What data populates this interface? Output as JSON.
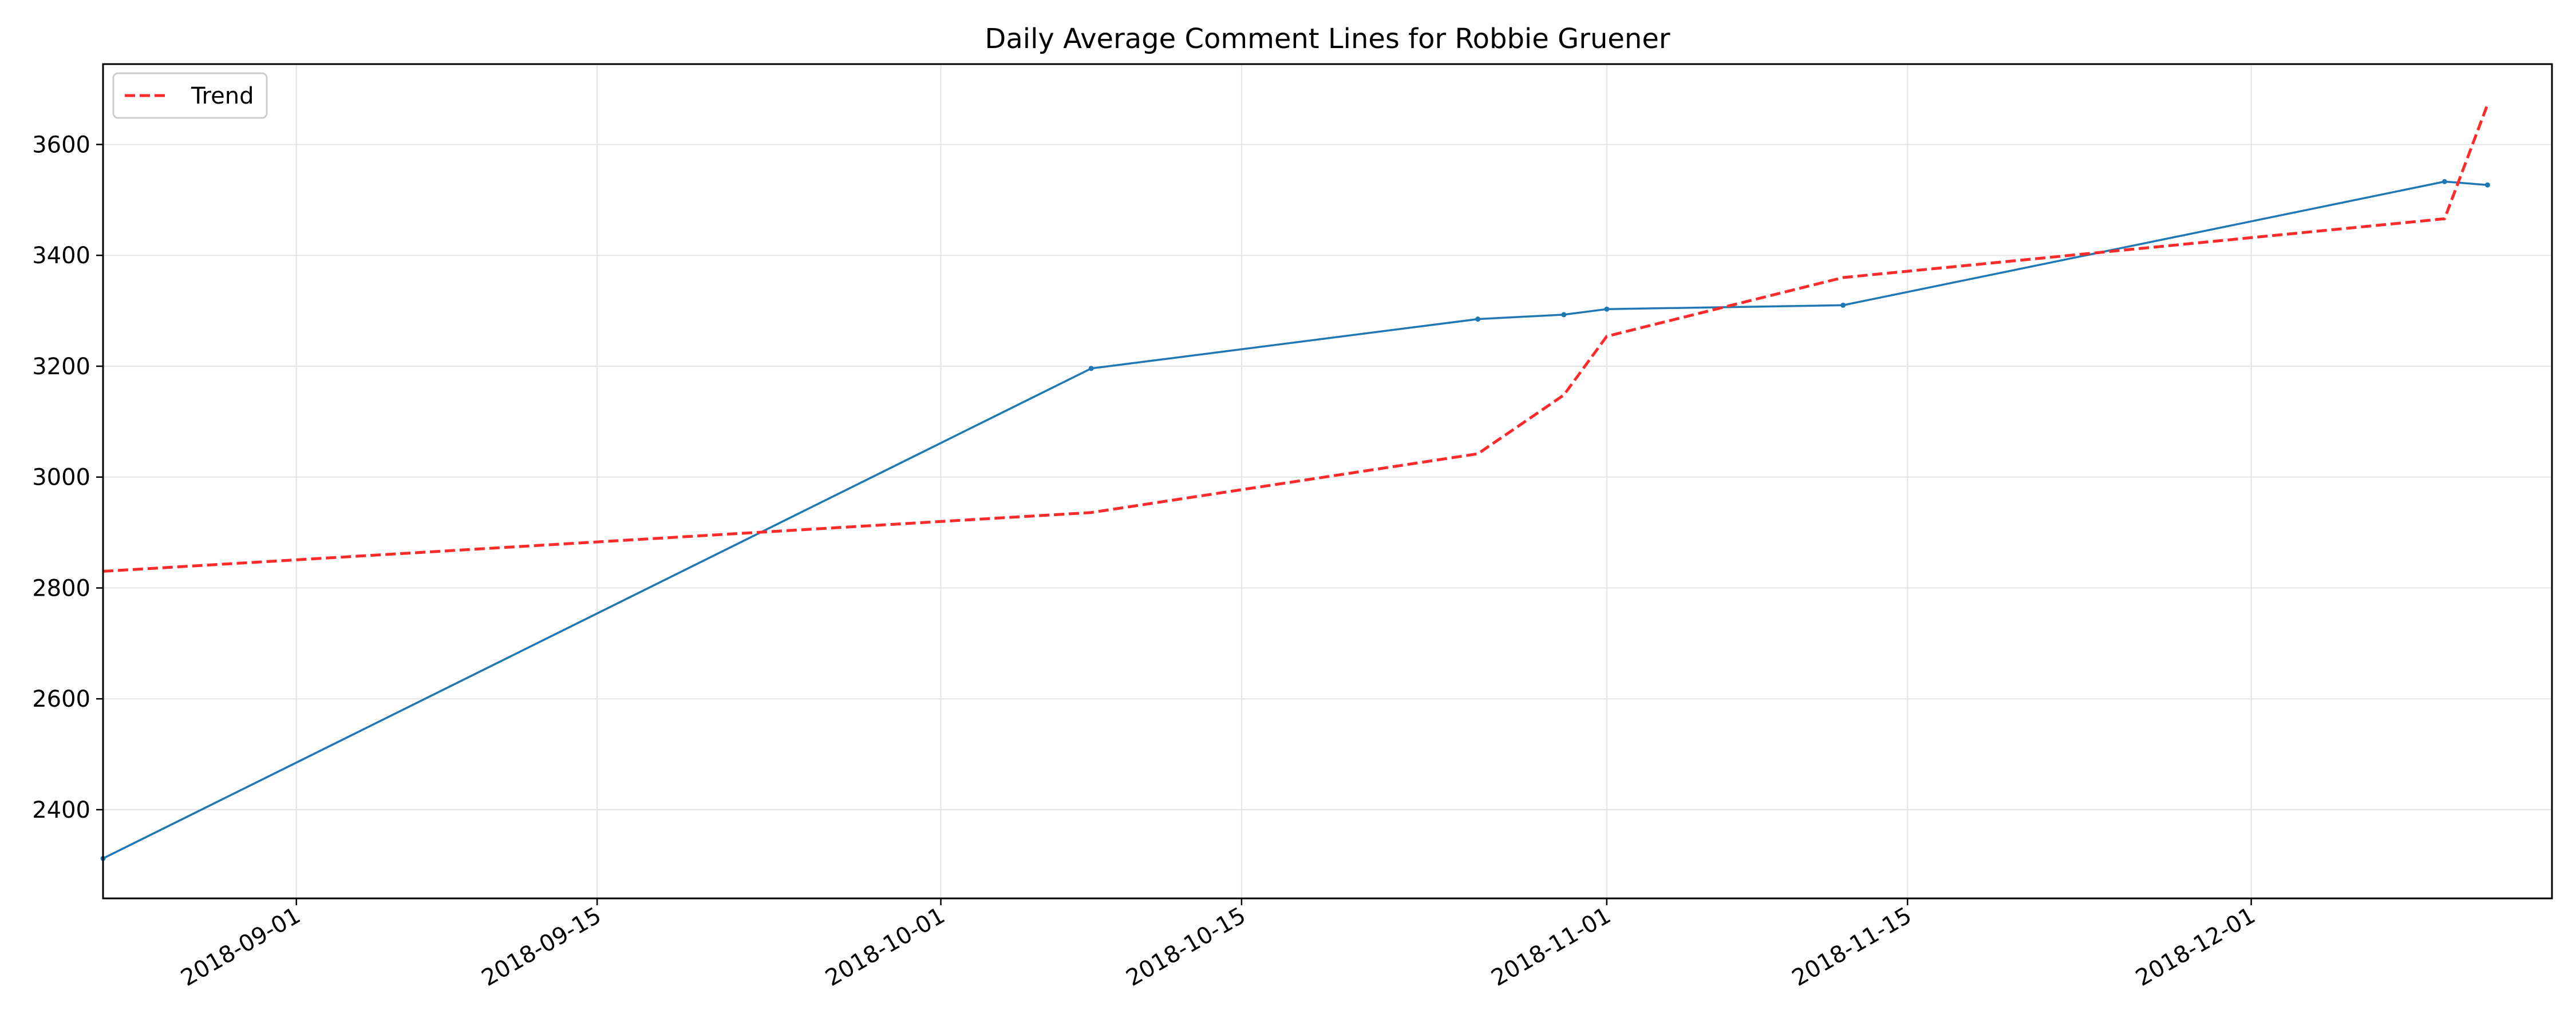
{
  "chart_data": {
    "type": "line",
    "title": "Daily Average Comment Lines for Robbie Gruener",
    "xlabel": "",
    "ylabel": "",
    "x_axis_type": "date",
    "xlim": [
      "2018-08-23",
      "2018-12-15"
    ],
    "ylim": [
      2240,
      3745
    ],
    "x_ticks": [
      "2018-09-01",
      "2018-09-15",
      "2018-10-01",
      "2018-10-15",
      "2018-11-01",
      "2018-11-15",
      "2018-12-01"
    ],
    "y_ticks": [
      2400,
      2600,
      2800,
      3000,
      3200,
      3400,
      3600
    ],
    "grid": true,
    "legend": {
      "position": "top-left",
      "entries": [
        "Trend"
      ]
    },
    "series": [
      {
        "color": "#1f77b4",
        "style": "solid",
        "marker": "dot",
        "points": [
          {
            "x": "2018-08-23",
            "y": 2312
          },
          {
            "x": "2018-10-08",
            "y": 3196
          },
          {
            "x": "2018-10-26",
            "y": 3285
          },
          {
            "x": "2018-10-30",
            "y": 3293
          },
          {
            "x": "2018-11-01",
            "y": 3303
          },
          {
            "x": "2018-11-12",
            "y": 3310
          },
          {
            "x": "2018-12-10",
            "y": 3533
          },
          {
            "x": "2018-12-12",
            "y": 3527
          }
        ]
      },
      {
        "name": "Trend",
        "color": "#ff2a2a",
        "style": "dashed",
        "points": [
          {
            "x": "2018-08-23",
            "y": 2830
          },
          {
            "x": "2018-10-08",
            "y": 2936
          },
          {
            "x": "2018-10-26",
            "y": 3042
          },
          {
            "x": "2018-10-30",
            "y": 3148
          },
          {
            "x": "2018-11-01",
            "y": 3254
          },
          {
            "x": "2018-11-12",
            "y": 3360
          },
          {
            "x": "2018-12-10",
            "y": 3466
          },
          {
            "x": "2018-12-12",
            "y": 3672
          }
        ]
      }
    ]
  }
}
